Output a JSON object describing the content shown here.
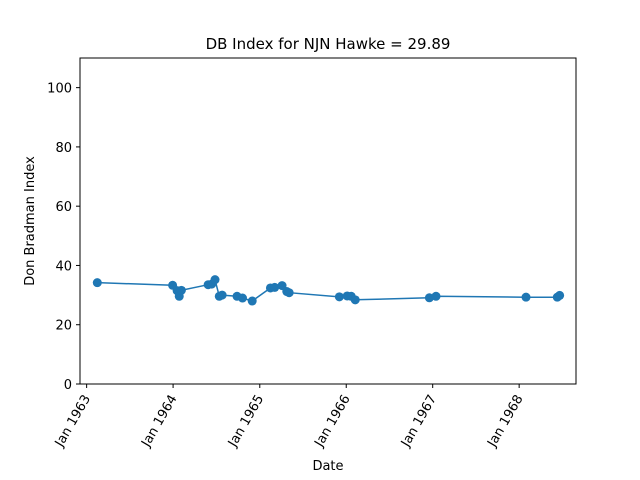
{
  "chart_data": {
    "type": "line",
    "title": "DB Index for NJN Hawke = 29.89",
    "xlabel": "Date",
    "ylabel": "Don Bradman Index",
    "ylim": [
      0,
      110
    ],
    "xlim": [
      "1962-12-04",
      "1968-08-28"
    ],
    "yticks": [
      0,
      20,
      40,
      60,
      80,
      100
    ],
    "xticks": [
      {
        "date": "1963-01-01",
        "label": "Jan 1963"
      },
      {
        "date": "1964-01-01",
        "label": "Jan 1964"
      },
      {
        "date": "1965-01-01",
        "label": "Jan 1965"
      },
      {
        "date": "1966-01-01",
        "label": "Jan 1966"
      },
      {
        "date": "1967-01-01",
        "label": "Jan 1967"
      },
      {
        "date": "1968-01-01",
        "label": "Jan 1968"
      }
    ],
    "grid": false,
    "color": "#1f77b4",
    "series": [
      {
        "x": [
          "1963-02-15",
          "1963-12-30",
          "1964-01-18",
          "1964-01-27",
          "1964-02-05",
          "1964-05-28",
          "1964-06-12",
          "1964-06-26",
          "1964-07-14",
          "1964-07-26",
          "1964-09-27",
          "1964-10-20",
          "1964-11-30",
          "1965-02-15",
          "1965-03-05",
          "1965-04-05",
          "1965-04-25",
          "1965-05-05",
          "1965-12-03",
          "1966-01-05",
          "1966-01-22",
          "1966-02-08",
          "1966-12-18",
          "1967-01-15",
          "1968-01-30",
          "1968-06-10",
          "1968-06-20"
        ],
        "y": [
          34.2,
          33.3,
          31.5,
          29.6,
          31.6,
          33.5,
          33.7,
          35.2,
          29.6,
          30.0,
          29.6,
          29.0,
          28.0,
          32.4,
          32.6,
          33.2,
          31.2,
          30.8,
          29.4,
          29.7,
          29.6,
          28.4,
          29.1,
          29.6,
          29.3,
          29.3,
          29.9
        ]
      }
    ]
  }
}
